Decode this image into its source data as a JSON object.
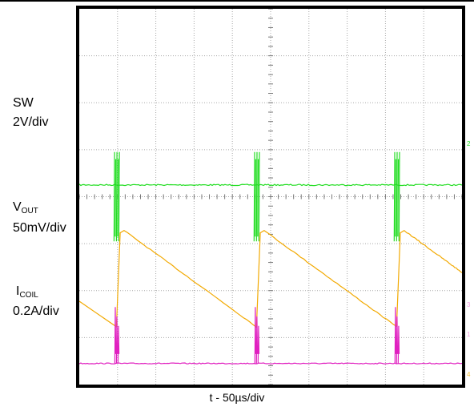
{
  "chart_data": {
    "type": "line",
    "xlabel": "t - 50µs/div",
    "x_divisions": 10,
    "y_divisions": 8,
    "grid": true,
    "colors": {
      "sw": "#22dd22",
      "vout": "#f2a900",
      "icoil": "#e020c0",
      "grid": "#a8a8a8",
      "frame": "#000000",
      "marker": "#f0a0e0"
    },
    "switching_period_div": 3.66,
    "pulse_x_div": [
      0.97,
      4.63,
      8.29
    ],
    "series": [
      {
        "id": "sw",
        "label_main": "SW",
        "label_sub": "",
        "scale": "2V/div",
        "baseline_div": 4.25,
        "pulse_high_div": 4.95,
        "pulse_low_div": 3.05
      },
      {
        "id": "vout",
        "label_main": "V",
        "label_sub": "OUT",
        "scale": "50mV/div",
        "ramp_low_div": 1.23,
        "ramp_high_div": 3.28,
        "sawtooth": "falling-ramp"
      },
      {
        "id": "icoil",
        "label_main": "I",
        "label_sub": "COIL",
        "scale": "0.2A/div",
        "baseline_div": 0.45,
        "pulse_high_div": 1.65
      }
    ],
    "right_markers": [
      "2",
      "3",
      "1",
      "4"
    ]
  }
}
